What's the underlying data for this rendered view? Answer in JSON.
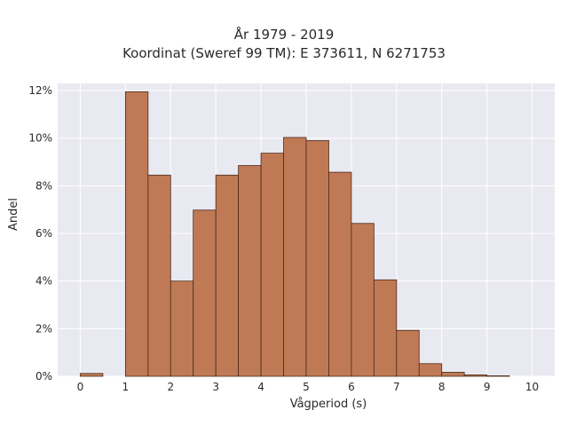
{
  "title": [
    "År 1979 - 2019",
    "Koordinat (Sweref 99 TM): E 373611, N 6271753"
  ],
  "colors": {
    "plot_bg": "#e9e9f1",
    "grid": "#ffffff",
    "bar_fill": "#bf7a55",
    "bar_edge": "#4a2a1a"
  },
  "chart_data": {
    "type": "bar",
    "title": "År 1979 - 2019\nKoordinat (Sweref 99 TM): E 373611, N 6271753",
    "xlabel": "Vågperiod (s)",
    "ylabel": "Andel",
    "xlim": [
      -0.5,
      10.5
    ],
    "ylim": [
      0,
      0.123
    ],
    "bin_width": 0.5,
    "grid": true,
    "xticks": [
      0,
      1,
      2,
      3,
      4,
      5,
      6,
      7,
      8,
      9,
      10
    ],
    "xtick_labels": [
      "0",
      "1",
      "2",
      "3",
      "4",
      "5",
      "6",
      "7",
      "8",
      "9",
      "10"
    ],
    "yticks": [
      0,
      0.02,
      0.04,
      0.06,
      0.08,
      0.1,
      0.12
    ],
    "ytick_labels": [
      "0%",
      "2%",
      "4%",
      "6%",
      "8%",
      "10%",
      "12%"
    ],
    "bins": [
      {
        "start": 0.0,
        "end": 0.5,
        "value": 0.0012
      },
      {
        "start": 1.0,
        "end": 1.5,
        "value": 0.1195
      },
      {
        "start": 1.5,
        "end": 2.0,
        "value": 0.0845
      },
      {
        "start": 2.0,
        "end": 2.5,
        "value": 0.04
      },
      {
        "start": 2.5,
        "end": 3.0,
        "value": 0.0698
      },
      {
        "start": 3.0,
        "end": 3.5,
        "value": 0.0845
      },
      {
        "start": 3.5,
        "end": 4.0,
        "value": 0.0885
      },
      {
        "start": 4.0,
        "end": 4.5,
        "value": 0.0937
      },
      {
        "start": 4.5,
        "end": 5.0,
        "value": 0.1003
      },
      {
        "start": 5.0,
        "end": 5.5,
        "value": 0.099
      },
      {
        "start": 5.5,
        "end": 6.0,
        "value": 0.0857
      },
      {
        "start": 6.0,
        "end": 6.5,
        "value": 0.0642
      },
      {
        "start": 6.5,
        "end": 7.0,
        "value": 0.0405
      },
      {
        "start": 7.0,
        "end": 7.5,
        "value": 0.0193
      },
      {
        "start": 7.5,
        "end": 8.0,
        "value": 0.0053
      },
      {
        "start": 8.0,
        "end": 8.5,
        "value": 0.0017
      },
      {
        "start": 8.5,
        "end": 9.0,
        "value": 0.0006
      },
      {
        "start": 9.0,
        "end": 9.5,
        "value": 0.0002
      }
    ]
  }
}
